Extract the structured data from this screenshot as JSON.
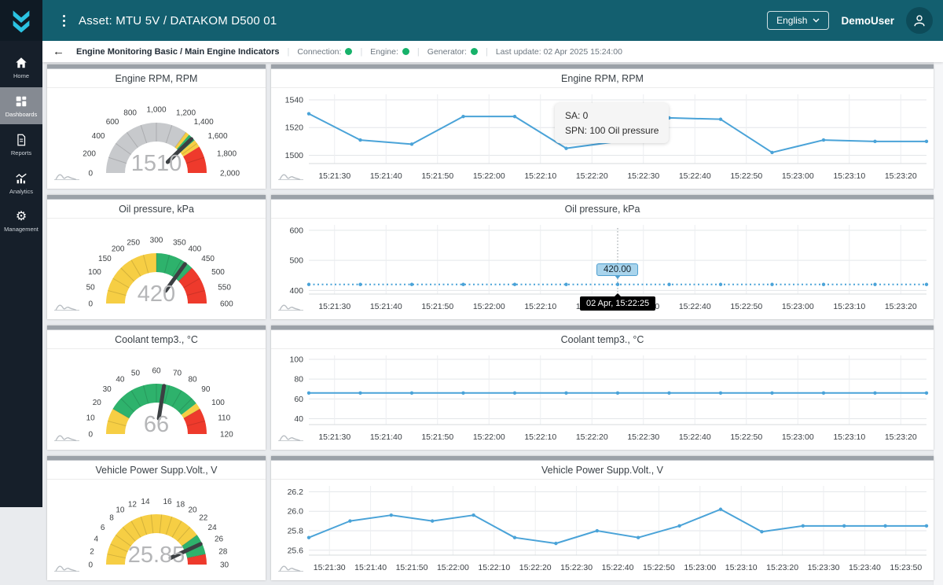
{
  "header": {
    "asset_title": "Asset: MTU 5V / DATAKOM D500 01",
    "language": "English",
    "user": "DemoUser"
  },
  "sidebar": {
    "items": [
      {
        "label": "Home",
        "active": false
      },
      {
        "label": "Dashboards",
        "active": true
      },
      {
        "label": "Reports",
        "active": false
      },
      {
        "label": "Analytics",
        "active": false
      },
      {
        "label": "Management",
        "active": false
      }
    ]
  },
  "subheader": {
    "title": "Engine Monitoring Basic / Main Engine Indicators",
    "statuses": [
      {
        "label": "Connection:",
        "color": "#17b26a"
      },
      {
        "label": "Engine:",
        "color": "#17b26a"
      },
      {
        "label": "Generator:",
        "color": "#17b26a"
      }
    ],
    "last_update": "Last update: 02 Apr 2025 15:24:00"
  },
  "colors": {
    "topbar": "#135f6f",
    "accent_line": "#4aa3d8",
    "gauge_gray": "#c7c9cc",
    "gauge_yellow": "#f6ce44",
    "gauge_green": "#2eb26c",
    "gauge_red": "#ee3a2c",
    "status_green": "#17b26a"
  },
  "panels": [
    {
      "id": "engine-rpm",
      "gauge": {
        "title": "Engine RPM, RPM",
        "min": 0,
        "max": 2000,
        "value": 1510,
        "display_value": "1510",
        "tick_labels": [
          "0",
          "200",
          "400",
          "600",
          "800",
          "1,000",
          "1,200",
          "1,400",
          "1,600",
          "1,800",
          "2,000"
        ],
        "bands": [
          {
            "from": 0,
            "to": 1400,
            "color": "#c7c9cc"
          },
          {
            "from": 1400,
            "to": 1450,
            "color": "#f6ce44"
          },
          {
            "from": 1450,
            "to": 1550,
            "color": "#2eb26c"
          },
          {
            "from": 1550,
            "to": 1650,
            "color": "#f6ce44"
          },
          {
            "from": 1650,
            "to": 2000,
            "color": "#ee3a2c"
          }
        ]
      },
      "chart": {
        "title": "Engine RPM, RPM",
        "type": "line",
        "ymin": 1494,
        "ymax": 1544,
        "yticks": [
          {
            "v": 1500,
            "label": "1500"
          },
          {
            "v": 1520,
            "label": "1520"
          },
          {
            "v": 1540,
            "label": "1540"
          }
        ],
        "xticks": [
          "15:21:30",
          "15:21:40",
          "15:21:50",
          "15:22:00",
          "15:22:10",
          "15:22:20",
          "15:22:30",
          "15:22:40",
          "15:22:50",
          "15:23:00",
          "15:23:10",
          "15:23:20"
        ],
        "values": [
          1530,
          1511,
          1508,
          1528,
          1528,
          1505,
          1510,
          1527,
          1526,
          1502,
          1511,
          1510,
          1510
        ],
        "dashed": false,
        "info_tooltip": {
          "time_s": 60,
          "lines": [
            "SA: 0",
            "SPN: 100 Oil pressure"
          ]
        }
      }
    },
    {
      "id": "oil-pressure",
      "gauge": {
        "title": "Oil pressure, kPa",
        "min": 0,
        "max": 600,
        "value": 420,
        "display_value": "420",
        "tick_labels": [
          "0",
          "50",
          "100",
          "150",
          "200",
          "250",
          "300",
          "350",
          "400",
          "450",
          "500",
          "550",
          "600"
        ],
        "bands": [
          {
            "from": 0,
            "to": 300,
            "color": "#f6ce44"
          },
          {
            "from": 300,
            "to": 450,
            "color": "#2eb26c"
          },
          {
            "from": 450,
            "to": 600,
            "color": "#ee3a2c"
          }
        ]
      },
      "chart": {
        "title": "Oil pressure, kPa",
        "type": "line",
        "ymin": 388,
        "ymax": 618,
        "yticks": [
          {
            "v": 400,
            "label": "400"
          },
          {
            "v": 500,
            "label": "500"
          },
          {
            "v": 600,
            "label": "600"
          }
        ],
        "xticks": [
          "15:21:30",
          "15:21:40",
          "15:21:50",
          "15:22:00",
          "15:22:10",
          "15:22:20",
          "15:22:30",
          "15:22:40",
          "15:22:50",
          "15:23:00",
          "15:23:10",
          "15:23:20"
        ],
        "values": [
          420,
          420,
          420,
          420,
          420,
          420,
          420,
          420,
          420,
          420,
          420,
          420,
          420
        ],
        "dashed": true,
        "hover": {
          "time_s": 60,
          "value": 420,
          "value_label": "420.00",
          "time_label": "02 Apr, 15:22:25"
        }
      }
    },
    {
      "id": "coolant-temp",
      "gauge": {
        "title": "Coolant temp3., °C",
        "min": 0,
        "max": 120,
        "value": 66,
        "display_value": "66",
        "tick_labels": [
          "0",
          "10",
          "20",
          "30",
          "40",
          "50",
          "60",
          "70",
          "80",
          "90",
          "100",
          "110",
          "120"
        ],
        "bands": [
          {
            "from": 0,
            "to": 20,
            "color": "#f6ce44"
          },
          {
            "from": 20,
            "to": 95,
            "color": "#2eb26c"
          },
          {
            "from": 95,
            "to": 100,
            "color": "#f6ce44"
          },
          {
            "from": 100,
            "to": 120,
            "color": "#ee3a2c"
          }
        ]
      },
      "chart": {
        "title": "Coolant temp3., °C",
        "type": "line",
        "ymin": 34,
        "ymax": 104,
        "yticks": [
          {
            "v": 40,
            "label": "40"
          },
          {
            "v": 60,
            "label": "60"
          },
          {
            "v": 80,
            "label": "80"
          },
          {
            "v": 100,
            "label": "100"
          }
        ],
        "xticks": [
          "15:21:30",
          "15:21:40",
          "15:21:50",
          "15:22:00",
          "15:22:10",
          "15:22:20",
          "15:22:30",
          "15:22:40",
          "15:22:50",
          "15:23:00",
          "15:23:10",
          "15:23:20"
        ],
        "values": [
          66,
          66,
          66,
          66,
          66,
          66,
          66,
          66,
          66,
          66,
          66,
          66,
          66
        ],
        "dashed": false
      }
    },
    {
      "id": "vehicle-voltage",
      "gauge": {
        "title": "Vehicle Power Supp.Volt., V",
        "min": 0,
        "max": 30,
        "value": 25.85,
        "display_value": "25.85",
        "tick_labels": [
          "0",
          "2",
          "4",
          "6",
          "8",
          "10",
          "12",
          "14",
          "16",
          "18",
          "20",
          "22",
          "24",
          "26",
          "28",
          "30"
        ],
        "bands": [
          {
            "from": 0,
            "to": 24,
            "color": "#f6ce44"
          },
          {
            "from": 24,
            "to": 28,
            "color": "#2eb26c"
          },
          {
            "from": 28,
            "to": 30,
            "color": "#ee3a2c"
          }
        ]
      },
      "chart": {
        "title": "Vehicle Power Supp.Volt., V",
        "type": "line",
        "ymin": 25.55,
        "ymax": 26.26,
        "yticks": [
          {
            "v": 25.6,
            "label": "25.6"
          },
          {
            "v": 25.8,
            "label": "25.8"
          },
          {
            "v": 26.0,
            "label": "26.0"
          },
          {
            "v": 26.2,
            "label": "26.2"
          }
        ],
        "xticks": [
          "15:21:30",
          "15:21:40",
          "15:21:50",
          "15:22:00",
          "15:22:10",
          "15:22:20",
          "15:22:30",
          "15:22:40",
          "15:22:50",
          "15:23:00",
          "15:23:10",
          "15:23:20",
          "15:23:30",
          "15:23:40",
          "15:23:50"
        ],
        "values": [
          25.73,
          25.9,
          25.96,
          25.9,
          25.96,
          25.73,
          25.67,
          25.8,
          25.73,
          25.85,
          26.02,
          25.79,
          25.85,
          25.85,
          25.85,
          25.85
        ],
        "dashed": false
      }
    }
  ]
}
